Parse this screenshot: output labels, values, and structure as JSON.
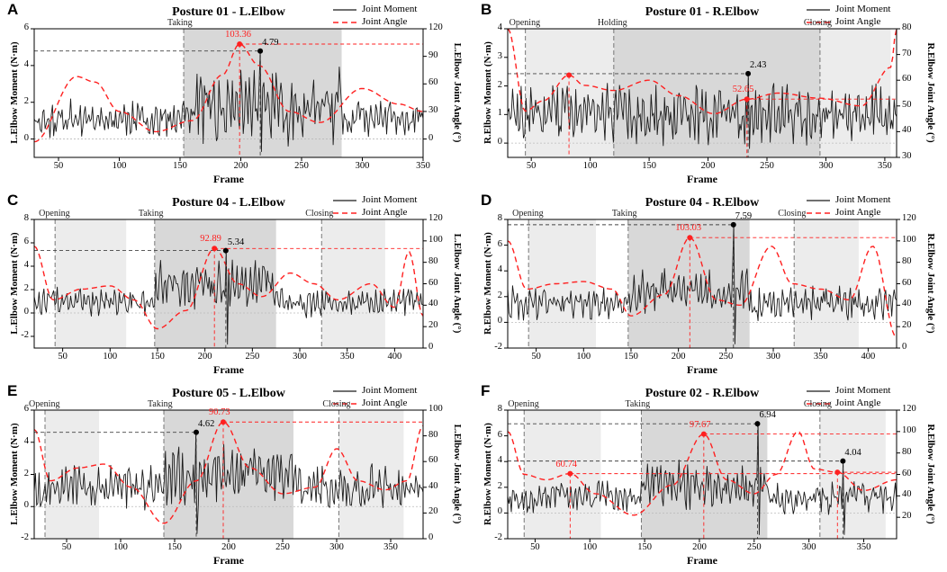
{
  "colors": {
    "moment": "#1a1a1a",
    "angle": "#ff2020",
    "phase_light": "#ececec",
    "phase_dark": "#d8d8d8"
  },
  "legend": {
    "moment": "Joint Moment",
    "angle": "Joint Angle"
  },
  "chart_data": [
    {
      "id": "A",
      "type": "line",
      "title": "Posture 01 - L.Elbow",
      "xlabel": "Frame",
      "ylabel_left": "L.Elbow Moment (N·m)",
      "ylabel_right": "L.Elbow Joint Angle (°)",
      "xlim": [
        30,
        350
      ],
      "ylim_left": [
        -1,
        6
      ],
      "ylim_right": [
        -20,
        120
      ],
      "xticks": [
        50,
        100,
        150,
        200,
        250,
        300,
        350
      ],
      "yticks_left": [
        0,
        2,
        4,
        6
      ],
      "yticks_right": [
        0,
        30,
        60,
        90,
        120
      ],
      "phases": [
        {
          "label": "Taking",
          "start": 153,
          "end": 283,
          "shade": "dark"
        }
      ],
      "moment_peak": {
        "x": 216,
        "y": 4.79,
        "label": "4.79"
      },
      "angle_peak": {
        "x": 199,
        "y": 103.36,
        "label": "103.36"
      },
      "angle_keypoints": [
        [
          30,
          -3
        ],
        [
          65,
          68
        ],
        [
          80,
          62
        ],
        [
          100,
          30
        ],
        [
          130,
          8
        ],
        [
          160,
          20
        ],
        [
          185,
          70
        ],
        [
          199,
          103.36
        ],
        [
          215,
          80
        ],
        [
          240,
          30
        ],
        [
          265,
          18
        ],
        [
          300,
          55
        ],
        [
          330,
          38
        ],
        [
          350,
          30
        ]
      ],
      "moment_segments": [
        {
          "start": 30,
          "end": 350,
          "base": 1.1,
          "amp": 0.9
        },
        {
          "start": 155,
          "end": 283,
          "base": 1.8,
          "amp": 1.8
        }
      ],
      "seed": 11
    },
    {
      "id": "B",
      "type": "line",
      "title": "Posture 01 - R.Elbow",
      "xlabel": "Frame",
      "ylabel_left": "R.Elbow Moment (N·m)",
      "ylabel_right": "R.Elbow Joint Angle (°)",
      "xlim": [
        30,
        360
      ],
      "ylim_left": [
        -0.5,
        4
      ],
      "ylim_right": [
        30,
        80
      ],
      "xticks": [
        50,
        100,
        150,
        200,
        250,
        300,
        350
      ],
      "yticks_left": [
        0,
        1,
        2,
        3,
        4
      ],
      "yticks_right": [
        30,
        40,
        50,
        60,
        70,
        80
      ],
      "phases": [
        {
          "label": "Opening",
          "start": 45,
          "end": 120,
          "shade": "light"
        },
        {
          "label": "Holding",
          "start": 120,
          "end": 295,
          "shade": "dark"
        },
        {
          "label": "Closing",
          "start": 295,
          "end": 355,
          "shade": "light"
        }
      ],
      "moment_peak": {
        "x": 234,
        "y": 2.43,
        "label": "2.43"
      },
      "angle_peak": {
        "x": 233,
        "y": 52.65,
        "label": "52.65"
      },
      "angle_mark": {
        "x": 82,
        "y": 62
      },
      "angle_keypoints": [
        [
          30,
          80
        ],
        [
          45,
          48
        ],
        [
          60,
          52
        ],
        [
          82,
          62
        ],
        [
          95,
          58
        ],
        [
          120,
          56
        ],
        [
          150,
          60
        ],
        [
          175,
          54
        ],
        [
          205,
          47
        ],
        [
          233,
          52.65
        ],
        [
          260,
          55
        ],
        [
          295,
          53
        ],
        [
          330,
          50
        ],
        [
          355,
          65
        ],
        [
          360,
          80
        ]
      ],
      "moment_segments": [
        {
          "start": 30,
          "end": 360,
          "base": 1.0,
          "amp": 0.9
        }
      ],
      "seed": 23
    },
    {
      "id": "C",
      "type": "line",
      "title": "Posture 04 - L.Elbow",
      "xlabel": "Frame",
      "ylabel_left": "L.Elbow Moment (N·m)",
      "ylabel_right": "L.Elbow Joint Angle (°)",
      "xlim": [
        20,
        430
      ],
      "ylim_left": [
        -3,
        8
      ],
      "ylim_right": [
        0,
        120
      ],
      "xticks": [
        50,
        100,
        150,
        200,
        250,
        300,
        350,
        400
      ],
      "yticks_left": [
        -2,
        0,
        2,
        4,
        6,
        8
      ],
      "yticks_right": [
        0,
        20,
        40,
        60,
        80,
        100,
        120
      ],
      "phases": [
        {
          "label": "Opening",
          "start": 42,
          "end": 117,
          "shade": "light"
        },
        {
          "label": "Taking",
          "start": 147,
          "end": 275,
          "shade": "dark"
        },
        {
          "label": "Closing",
          "start": 323,
          "end": 390,
          "shade": "light"
        }
      ],
      "moment_peak": {
        "x": 222,
        "y": 5.34,
        "label": "5.34"
      },
      "angle_peak": {
        "x": 210,
        "y": 92.89,
        "label": "92.89"
      },
      "angle_keypoints": [
        [
          20,
          95
        ],
        [
          40,
          45
        ],
        [
          70,
          55
        ],
        [
          100,
          58
        ],
        [
          125,
          45
        ],
        [
          150,
          18
        ],
        [
          180,
          35
        ],
        [
          210,
          92.89
        ],
        [
          235,
          60
        ],
        [
          260,
          48
        ],
        [
          290,
          70
        ],
        [
          315,
          60
        ],
        [
          340,
          45
        ],
        [
          375,
          60
        ],
        [
          400,
          38
        ],
        [
          415,
          90
        ],
        [
          430,
          30
        ]
      ],
      "moment_segments": [
        {
          "start": 20,
          "end": 430,
          "base": 0.9,
          "amp": 1.1
        },
        {
          "start": 148,
          "end": 275,
          "base": 2.4,
          "amp": 1.8
        }
      ],
      "seed": 37
    },
    {
      "id": "D",
      "type": "line",
      "title": "Posture 04 - R.Elbow",
      "xlabel": "Frame",
      "ylabel_left": "R.Elbow Moment (N·m)",
      "ylabel_right": "R.Elbow Joint Angle (°)",
      "xlim": [
        20,
        430
      ],
      "ylim_left": [
        -2,
        8
      ],
      "ylim_right": [
        0,
        120
      ],
      "xticks": [
        50,
        100,
        150,
        200,
        250,
        300,
        350,
        400
      ],
      "yticks_left": [
        -2,
        0,
        2,
        4,
        6,
        8
      ],
      "yticks_right": [
        0,
        20,
        40,
        60,
        80,
        100,
        120
      ],
      "phases": [
        {
          "label": "Opening",
          "start": 42,
          "end": 113,
          "shade": "light"
        },
        {
          "label": "Taking",
          "start": 147,
          "end": 275,
          "shade": "dark"
        },
        {
          "label": "Closing",
          "start": 322,
          "end": 390,
          "shade": "light"
        }
      ],
      "moment_peak": {
        "x": 258,
        "y": 7.59,
        "label": "7.59"
      },
      "angle_peak": {
        "x": 212,
        "y": 103.03,
        "label": "103.03"
      },
      "angle_keypoints": [
        [
          20,
          100
        ],
        [
          40,
          55
        ],
        [
          70,
          60
        ],
        [
          100,
          62
        ],
        [
          130,
          55
        ],
        [
          150,
          30
        ],
        [
          185,
          50
        ],
        [
          212,
          103.03
        ],
        [
          240,
          45
        ],
        [
          265,
          40
        ],
        [
          298,
          95
        ],
        [
          320,
          60
        ],
        [
          350,
          55
        ],
        [
          380,
          45
        ],
        [
          405,
          95
        ],
        [
          430,
          10
        ]
      ],
      "moment_segments": [
        {
          "start": 20,
          "end": 430,
          "base": 1.5,
          "amp": 1.2
        },
        {
          "start": 150,
          "end": 275,
          "base": 2.3,
          "amp": 1.6
        }
      ],
      "seed": 41
    },
    {
      "id": "E",
      "type": "line",
      "title": "Posture 05 - L.Elbow",
      "xlabel": "Frame",
      "ylabel_left": "L.Elbow Moment (N·m)",
      "ylabel_right": "L.Elbow Joint Angle (°)",
      "xlim": [
        20,
        380
      ],
      "ylim_left": [
        -2,
        6
      ],
      "ylim_right": [
        0,
        100
      ],
      "xticks": [
        50,
        100,
        150,
        200,
        250,
        300,
        350
      ],
      "yticks_left": [
        -2,
        0,
        2,
        4,
        6
      ],
      "yticks_right": [
        0,
        20,
        40,
        60,
        80,
        100
      ],
      "phases": [
        {
          "label": "Opening",
          "start": 30,
          "end": 80,
          "shade": "light"
        },
        {
          "label": "Taking",
          "start": 140,
          "end": 260,
          "shade": "dark"
        },
        {
          "label": "Closing",
          "start": 302,
          "end": 362,
          "shade": "light"
        }
      ],
      "moment_peak": {
        "x": 170,
        "y": 4.62,
        "label": "4.62"
      },
      "angle_peak": {
        "x": 195,
        "y": 90.73,
        "label": "90.73"
      },
      "angle_keypoints": [
        [
          20,
          85
        ],
        [
          35,
          45
        ],
        [
          60,
          55
        ],
        [
          85,
          58
        ],
        [
          110,
          40
        ],
        [
          140,
          12
        ],
        [
          170,
          45
        ],
        [
          195,
          90.73
        ],
        [
          220,
          55
        ],
        [
          250,
          35
        ],
        [
          280,
          40
        ],
        [
          300,
          70
        ],
        [
          320,
          45
        ],
        [
          345,
          38
        ],
        [
          365,
          45
        ],
        [
          380,
          88
        ]
      ],
      "moment_segments": [
        {
          "start": 20,
          "end": 380,
          "base": 1.2,
          "amp": 1.2
        },
        {
          "start": 140,
          "end": 260,
          "base": 2.0,
          "amp": 1.6
        }
      ],
      "seed": 53
    },
    {
      "id": "F",
      "type": "line",
      "title": "Posture 02 - R.Elbow",
      "xlabel": "Frame",
      "ylabel_left": "R.Elbow Moment (N·m)",
      "ylabel_right": "R.Elbow Joint Angle (°)",
      "xlim": [
        25,
        380
      ],
      "ylim_left": [
        -2,
        8
      ],
      "ylim_right": [
        0,
        120
      ],
      "xticks": [
        50,
        100,
        150,
        200,
        250,
        300,
        350
      ],
      "yticks_left": [
        -2,
        0,
        2,
        4,
        6,
        8
      ],
      "yticks_right": [
        20,
        40,
        60,
        80,
        100,
        120
      ],
      "phases": [
        {
          "label": "Opening",
          "start": 40,
          "end": 110,
          "shade": "light"
        },
        {
          "label": "Taking",
          "start": 147,
          "end": 262,
          "shade": "dark"
        },
        {
          "label": "Closing",
          "start": 310,
          "end": 370,
          "shade": "light"
        }
      ],
      "moment_peaks": [
        {
          "x": 253,
          "y": 6.94,
          "label": "6.94"
        },
        {
          "x": 331,
          "y": 4.04,
          "label": "4.04"
        }
      ],
      "angle_peaks": [
        {
          "x": 82,
          "y": 60.74,
          "label": "60.74"
        },
        {
          "x": 204,
          "y": 97.67,
          "label": "97.67"
        },
        {
          "x": 326,
          "y": 62,
          "label": ""
        }
      ],
      "angle_keypoints": [
        [
          25,
          100
        ],
        [
          40,
          60
        ],
        [
          60,
          55
        ],
        [
          82,
          60.74
        ],
        [
          105,
          42
        ],
        [
          140,
          22
        ],
        [
          175,
          50
        ],
        [
          204,
          97.67
        ],
        [
          225,
          55
        ],
        [
          250,
          42
        ],
        [
          270,
          60
        ],
        [
          290,
          100
        ],
        [
          305,
          65
        ],
        [
          326,
          62
        ],
        [
          350,
          45
        ],
        [
          380,
          55
        ]
      ],
      "moment_segments": [
        {
          "start": 25,
          "end": 380,
          "base": 1.2,
          "amp": 1.1
        },
        {
          "start": 147,
          "end": 262,
          "base": 2.2,
          "amp": 1.6
        }
      ],
      "seed": 67
    }
  ]
}
